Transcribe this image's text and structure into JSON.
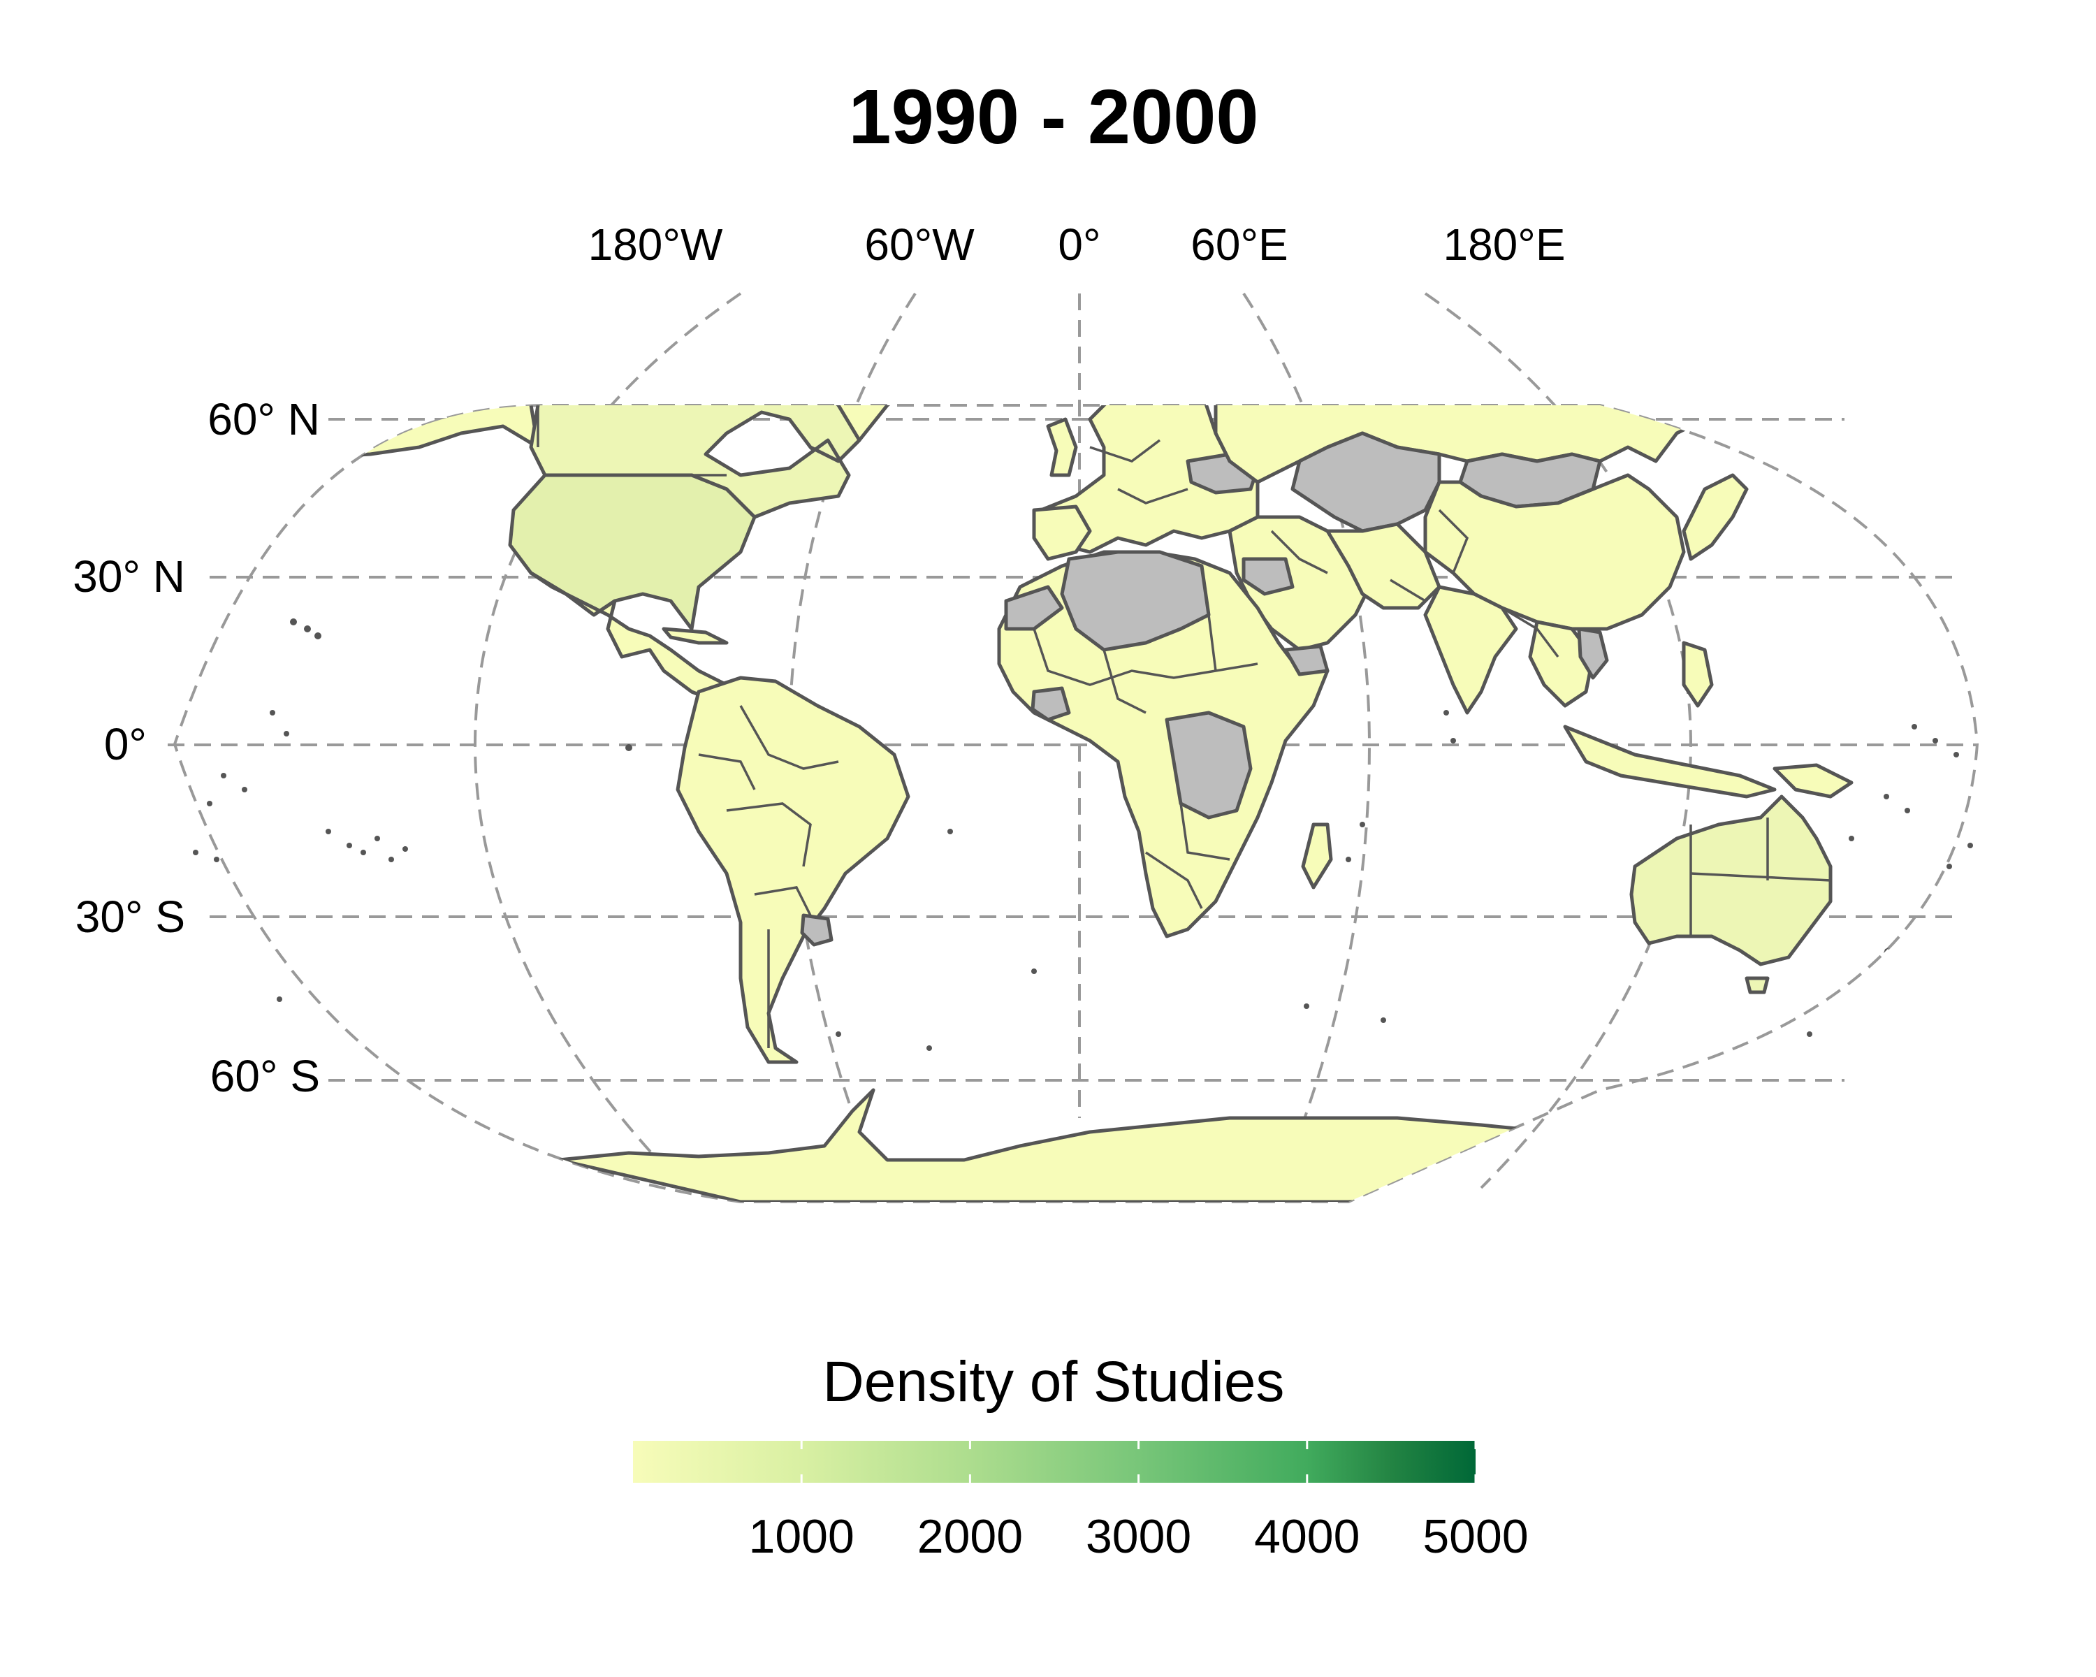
{
  "map": {
    "title": "1990 - 2000",
    "longitude_labels": [
      "180°W",
      "60°W",
      "0°",
      "60°E",
      "180°E"
    ],
    "latitude_labels": [
      "60° N",
      "30° N",
      "0°",
      "30° S",
      "60° S"
    ],
    "projection": "Robinson",
    "colors": {
      "low": "#f7fcb9",
      "light": "#edf6b5",
      "usa": "#e3f0ad",
      "high": "#006837",
      "no_data": "#bdbdbd",
      "outline": "#555555",
      "graticule": "#999999"
    }
  },
  "legend": {
    "title": "Density of Studies",
    "ticks": [
      "1000",
      "2000",
      "3000",
      "4000",
      "5000"
    ],
    "tick_values": [
      1000,
      2000,
      3000,
      4000,
      5000
    ],
    "range": [
      0,
      5000
    ],
    "placement": "bottom",
    "gradient": [
      "#f7fcb9",
      "#d9f0a3",
      "#addd8e",
      "#78c679",
      "#41ab5d",
      "#238443",
      "#006837"
    ]
  }
}
